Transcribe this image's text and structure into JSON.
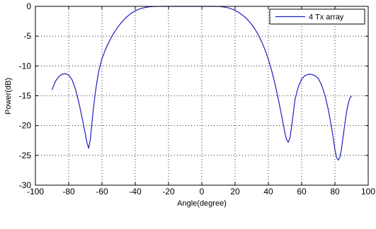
{
  "chart_data": {
    "type": "line",
    "title": "",
    "xlabel": "Angle(degree)",
    "ylabel": "Power(dB)",
    "xlim": [
      -100,
      100
    ],
    "ylim": [
      -30,
      0
    ],
    "x_ticks": [
      -100,
      -80,
      -60,
      -40,
      -20,
      0,
      20,
      40,
      60,
      80,
      100
    ],
    "y_ticks": [
      0,
      -5,
      -10,
      -15,
      -20,
      -25,
      -30
    ],
    "grid": true,
    "legend_position": "top-right",
    "series": [
      {
        "name": "4 Tx array",
        "color": "#1f1fbf",
        "x": [
          -90,
          -88,
          -86,
          -84,
          -82,
          -80,
          -78,
          -76,
          -74,
          -72,
          -70,
          -69,
          -68,
          -67,
          -66,
          -65,
          -64,
          -63,
          -62,
          -61,
          -60,
          -58,
          -56,
          -54,
          -52,
          -50,
          -48,
          -46,
          -44,
          -42,
          -40,
          -38,
          -36,
          -34,
          -32,
          -30,
          -28,
          -26,
          -24,
          -22,
          -20,
          -18,
          -16,
          -14,
          -12,
          -10,
          -8,
          -6,
          -4,
          -2,
          0,
          2,
          4,
          6,
          8,
          10,
          12,
          14,
          16,
          18,
          20,
          22,
          24,
          26,
          28,
          30,
          32,
          34,
          36,
          38,
          40,
          42,
          44,
          46,
          48,
          50,
          51,
          52,
          53,
          54,
          55,
          56,
          58,
          60,
          62,
          64,
          66,
          68,
          70,
          72,
          74,
          76,
          78,
          79,
          80,
          81,
          82,
          83,
          84,
          85,
          86,
          87,
          88,
          89,
          90
        ],
        "y": [
          -14.0,
          -12.6,
          -11.8,
          -11.4,
          -11.3,
          -11.5,
          -12.3,
          -13.8,
          -16.0,
          -18.6,
          -21.4,
          -22.9,
          -23.8,
          -22.3,
          -19.5,
          -16.8,
          -14.5,
          -12.6,
          -11.0,
          -9.8,
          -8.8,
          -7.3,
          -6.1,
          -5.0,
          -4.1,
          -3.3,
          -2.6,
          -2.0,
          -1.5,
          -1.1,
          -0.75,
          -0.5,
          -0.32,
          -0.18,
          -0.09,
          -0.04,
          -0.02,
          -0.01,
          0.0,
          0.0,
          0.0,
          0.0,
          0.0,
          0.0,
          0.0,
          0.0,
          0.0,
          0.0,
          0.0,
          0.0,
          0.0,
          0.0,
          0.0,
          0.0,
          0.0,
          -0.02,
          -0.06,
          -0.14,
          -0.26,
          -0.44,
          -0.68,
          -0.98,
          -1.36,
          -1.82,
          -2.38,
          -3.05,
          -3.85,
          -4.8,
          -5.95,
          -7.3,
          -8.9,
          -10.8,
          -13.0,
          -15.6,
          -18.4,
          -21.3,
          -22.4,
          -22.8,
          -22.0,
          -20.1,
          -17.9,
          -15.6,
          -13.5,
          -12.2,
          -11.6,
          -11.4,
          -11.4,
          -11.6,
          -12.1,
          -13.2,
          -14.9,
          -17.3,
          -20.3,
          -22.2,
          -24.0,
          -25.4,
          -25.8,
          -25.3,
          -23.8,
          -21.7,
          -19.6,
          -17.7,
          -16.3,
          -15.4,
          -15.0
        ]
      }
    ]
  }
}
